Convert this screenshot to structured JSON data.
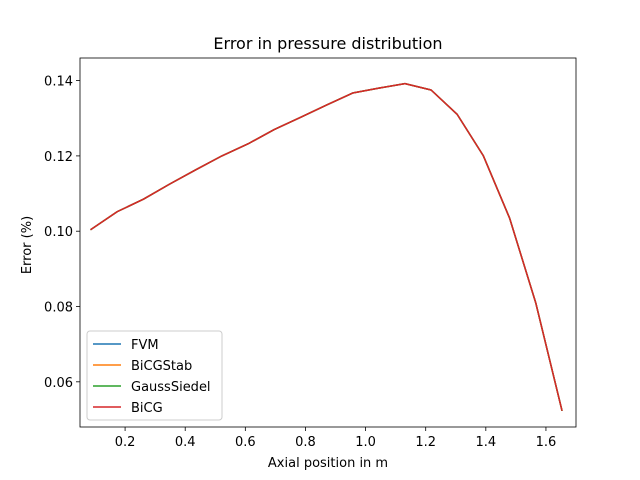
{
  "chart_data": {
    "type": "line",
    "title": "Error in pressure distribution",
    "xlabel": "Axial position in m",
    "ylabel": "Error (%)",
    "xlim": [
      0.05,
      1.7
    ],
    "ylim": [
      0.048,
      0.146
    ],
    "xticks": [
      0.2,
      0.4,
      0.6,
      0.8,
      1.0,
      1.2,
      1.4,
      1.6
    ],
    "xtick_labels": [
      "0.2",
      "0.4",
      "0.6",
      "0.8",
      "1.0",
      "1.2",
      "1.4",
      "1.6"
    ],
    "yticks": [
      0.06,
      0.08,
      0.1,
      0.12,
      0.14
    ],
    "ytick_labels": [
      "0.06",
      "0.08",
      "0.10",
      "0.12",
      "0.14"
    ],
    "grid": false,
    "legend_position": "lower-left",
    "x": [
      0.087,
      0.174,
      0.261,
      0.348,
      0.435,
      0.522,
      0.609,
      0.696,
      0.783,
      0.87,
      0.957,
      1.044,
      1.131,
      1.218,
      1.305,
      1.392,
      1.479,
      1.566,
      1.653
    ],
    "series": [
      {
        "name": "FVM",
        "color": "#1f77b4",
        "values": [
          0.1005,
          0.1052,
          0.1085,
          0.1125,
          0.1163,
          0.12,
          0.1232,
          0.127,
          0.1302,
          0.1335,
          0.1367,
          0.138,
          0.1392,
          0.1375,
          0.131,
          0.12,
          0.1035,
          0.081,
          0.0525
        ]
      },
      {
        "name": "BiCGStab",
        "color": "#ff7f0e",
        "values": [
          0.1005,
          0.1052,
          0.1085,
          0.1125,
          0.1163,
          0.12,
          0.1232,
          0.127,
          0.1302,
          0.1335,
          0.1367,
          0.138,
          0.1392,
          0.1375,
          0.131,
          0.12,
          0.1035,
          0.081,
          0.0525
        ]
      },
      {
        "name": "GaussSiedel",
        "color": "#2ca02c",
        "values": [
          0.1005,
          0.1052,
          0.1085,
          0.1125,
          0.1163,
          0.12,
          0.1232,
          0.127,
          0.1302,
          0.1335,
          0.1367,
          0.138,
          0.1392,
          0.1375,
          0.131,
          0.12,
          0.1035,
          0.081,
          0.0525
        ]
      },
      {
        "name": "BiCG",
        "color": "#d62728",
        "values": [
          0.1005,
          0.1052,
          0.1085,
          0.1125,
          0.1163,
          0.12,
          0.1232,
          0.127,
          0.1302,
          0.1335,
          0.1367,
          0.138,
          0.1392,
          0.1375,
          0.131,
          0.12,
          0.1035,
          0.081,
          0.0525
        ]
      }
    ]
  }
}
